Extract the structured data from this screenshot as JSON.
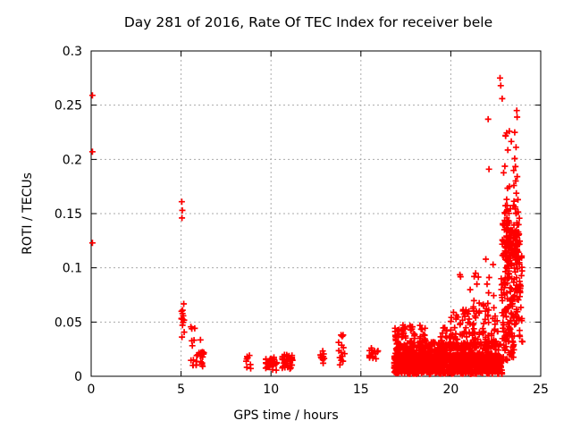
{
  "chart_data": {
    "type": "scatter",
    "title": "Day 281 of 2016, Rate Of TEC Index for receiver bele",
    "xlabel": "GPS time / hours",
    "ylabel": "ROTI / TECUs",
    "xlim": [
      0,
      25
    ],
    "ylim": [
      0,
      0.3
    ],
    "xtick_values": [
      0,
      5,
      10,
      15,
      20,
      25
    ],
    "xtick_labels": [
      "0",
      "5",
      "10",
      "15",
      "20",
      "25"
    ],
    "ytick_values": [
      0,
      0.05,
      0.1,
      0.15,
      0.2,
      0.25,
      0.3
    ],
    "ytick_labels": [
      "0",
      "0.05",
      "0.1",
      "0.15",
      "0.2",
      "0.25",
      "0.3"
    ],
    "grid": true,
    "legend": "none",
    "marker": {
      "shape": "plus",
      "size": 7,
      "color": "#ff0000"
    },
    "colors": {
      "background": "#ffffff",
      "axis": "#000000",
      "grid": "#aaaaaa",
      "text": "#000000"
    },
    "render_seed": 20161281,
    "outlier_points": [
      [
        0.07,
        0.259
      ],
      [
        0.07,
        0.207
      ],
      [
        0.07,
        0.123
      ],
      [
        5.04,
        0.161
      ],
      [
        5.07,
        0.153
      ],
      [
        5.05,
        0.146
      ],
      [
        21.3,
        0.092
      ],
      [
        21.38,
        0.095
      ],
      [
        21.45,
        0.085
      ],
      [
        21.95,
        0.108
      ],
      [
        22.02,
        0.085
      ],
      [
        22.1,
        0.077
      ],
      [
        22.35,
        0.103
      ],
      [
        22.08,
        0.237
      ],
      [
        22.12,
        0.191
      ],
      [
        22.74,
        0.275
      ],
      [
        22.78,
        0.268
      ],
      [
        22.86,
        0.256
      ],
      [
        23.67,
        0.245
      ],
      [
        23.69,
        0.239
      ]
    ],
    "clusters": [
      {
        "x": [
          5.02,
          5.18
        ],
        "y": [
          0.034,
          0.067
        ],
        "n": 14,
        "dist": "uniform"
      },
      {
        "x": [
          5.5,
          5.8
        ],
        "y": [
          0.025,
          0.047
        ],
        "n": 6,
        "dist": "uniform"
      },
      {
        "x": [
          5.55,
          6.35
        ],
        "y": [
          0.008,
          0.022
        ],
        "n": 16,
        "dist": "uniform"
      },
      {
        "x": [
          6.05,
          6.35
        ],
        "y": [
          0.013,
          0.036
        ],
        "n": 7,
        "dist": "uniform"
      },
      {
        "x": [
          8.6,
          8.9
        ],
        "y": [
          0.007,
          0.02
        ],
        "n": 8,
        "dist": "uniform"
      },
      {
        "x": [
          9.7,
          10.35
        ],
        "y": [
          0.004,
          0.019
        ],
        "n": 42,
        "dist": "mid"
      },
      {
        "x": [
          10.55,
          11.2
        ],
        "y": [
          0.005,
          0.022
        ],
        "n": 30,
        "dist": "mid"
      },
      {
        "x": [
          12.75,
          13.0
        ],
        "y": [
          0.012,
          0.024
        ],
        "n": 10,
        "dist": "uniform"
      },
      {
        "x": [
          13.75,
          14.1
        ],
        "y": [
          0.004,
          0.043
        ],
        "n": 14,
        "dist": "uniform"
      },
      {
        "x": [
          15.45,
          15.95
        ],
        "y": [
          0.009,
          0.033
        ],
        "n": 18,
        "dist": "mid"
      },
      {
        "x": [
          16.85,
          22.85
        ],
        "y": [
          0.002,
          0.02
        ],
        "n": 900,
        "dist": "uniform"
      },
      {
        "x": [
          16.9,
          22.8
        ],
        "y": [
          0.018,
          0.032
        ],
        "n": 300,
        "dist": "low"
      },
      {
        "x": [
          16.9,
          17.2
        ],
        "y": [
          0.024,
          0.047
        ],
        "n": 26,
        "dist": "low"
      },
      {
        "x": [
          17.25,
          17.55
        ],
        "y": [
          0.024,
          0.049
        ],
        "n": 30,
        "dist": "low"
      },
      {
        "x": [
          17.7,
          18.0
        ],
        "y": [
          0.024,
          0.047
        ],
        "n": 26,
        "dist": "low"
      },
      {
        "x": [
          18.2,
          18.6
        ],
        "y": [
          0.024,
          0.049
        ],
        "n": 32,
        "dist": "low"
      },
      {
        "x": [
          18.75,
          19.35
        ],
        "y": [
          0.02,
          0.034
        ],
        "n": 20,
        "dist": "low"
      },
      {
        "x": [
          19.4,
          19.8
        ],
        "y": [
          0.024,
          0.046
        ],
        "n": 24,
        "dist": "low"
      },
      {
        "x": [
          19.85,
          20.4
        ],
        "y": [
          0.026,
          0.06
        ],
        "n": 40,
        "dist": "low"
      },
      {
        "x": [
          20.45,
          21.1
        ],
        "y": [
          0.025,
          0.059
        ],
        "n": 36,
        "dist": "low"
      },
      {
        "x": [
          21.2,
          21.6
        ],
        "y": [
          0.027,
          0.07
        ],
        "n": 30,
        "dist": "low"
      },
      {
        "x": [
          21.75,
          22.15
        ],
        "y": [
          0.026,
          0.068
        ],
        "n": 28,
        "dist": "low"
      },
      {
        "x": [
          22.25,
          22.65
        ],
        "y": [
          0.027,
          0.062
        ],
        "n": 26,
        "dist": "low"
      },
      {
        "x": [
          20.5,
          22.7
        ],
        "y": [
          0.06,
          0.105
        ],
        "n": 16,
        "dist": "low"
      },
      {
        "x": [
          22.85,
          23.85
        ],
        "y": [
          0.09,
          0.152
        ],
        "n": 140,
        "dist": "mid"
      },
      {
        "x": [
          22.8,
          23.9
        ],
        "y": [
          0.048,
          0.092
        ],
        "n": 90,
        "dist": "uniform"
      },
      {
        "x": [
          22.85,
          23.6
        ],
        "y": [
          0.014,
          0.05
        ],
        "n": 55,
        "dist": "uniform"
      },
      {
        "x": [
          22.9,
          23.75
        ],
        "y": [
          0.15,
          0.232
        ],
        "n": 36,
        "dist": "low"
      },
      {
        "x": [
          23.82,
          24.0
        ],
        "y": [
          0.025,
          0.112
        ],
        "n": 14,
        "dist": "uniform"
      }
    ]
  }
}
